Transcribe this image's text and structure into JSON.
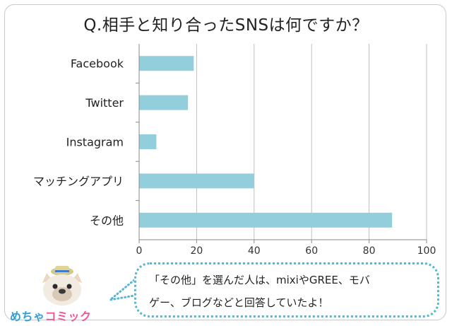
{
  "chart_data": {
    "type": "bar",
    "orientation": "horizontal",
    "title": "Q.相手と知り合ったSNSは何ですか？",
    "categories": [
      "Facebook",
      "Twitter",
      "Instagram",
      "マッチングアプリ",
      "その他"
    ],
    "values": [
      19,
      17,
      6,
      40,
      88
    ],
    "xlim": [
      0,
      100
    ],
    "xticks": [
      "0",
      "20",
      "40",
      "60",
      "80",
      "100"
    ],
    "grid": true,
    "bar_color": "#93cedd"
  },
  "callout": {
    "line1": "「その他」を選んだ人は、mixiやGREE、モバ",
    "line2": "ゲー、ブログなどと回答していたよ！"
  },
  "logo": {
    "part1": "めちゃ",
    "part2": "コミック"
  }
}
